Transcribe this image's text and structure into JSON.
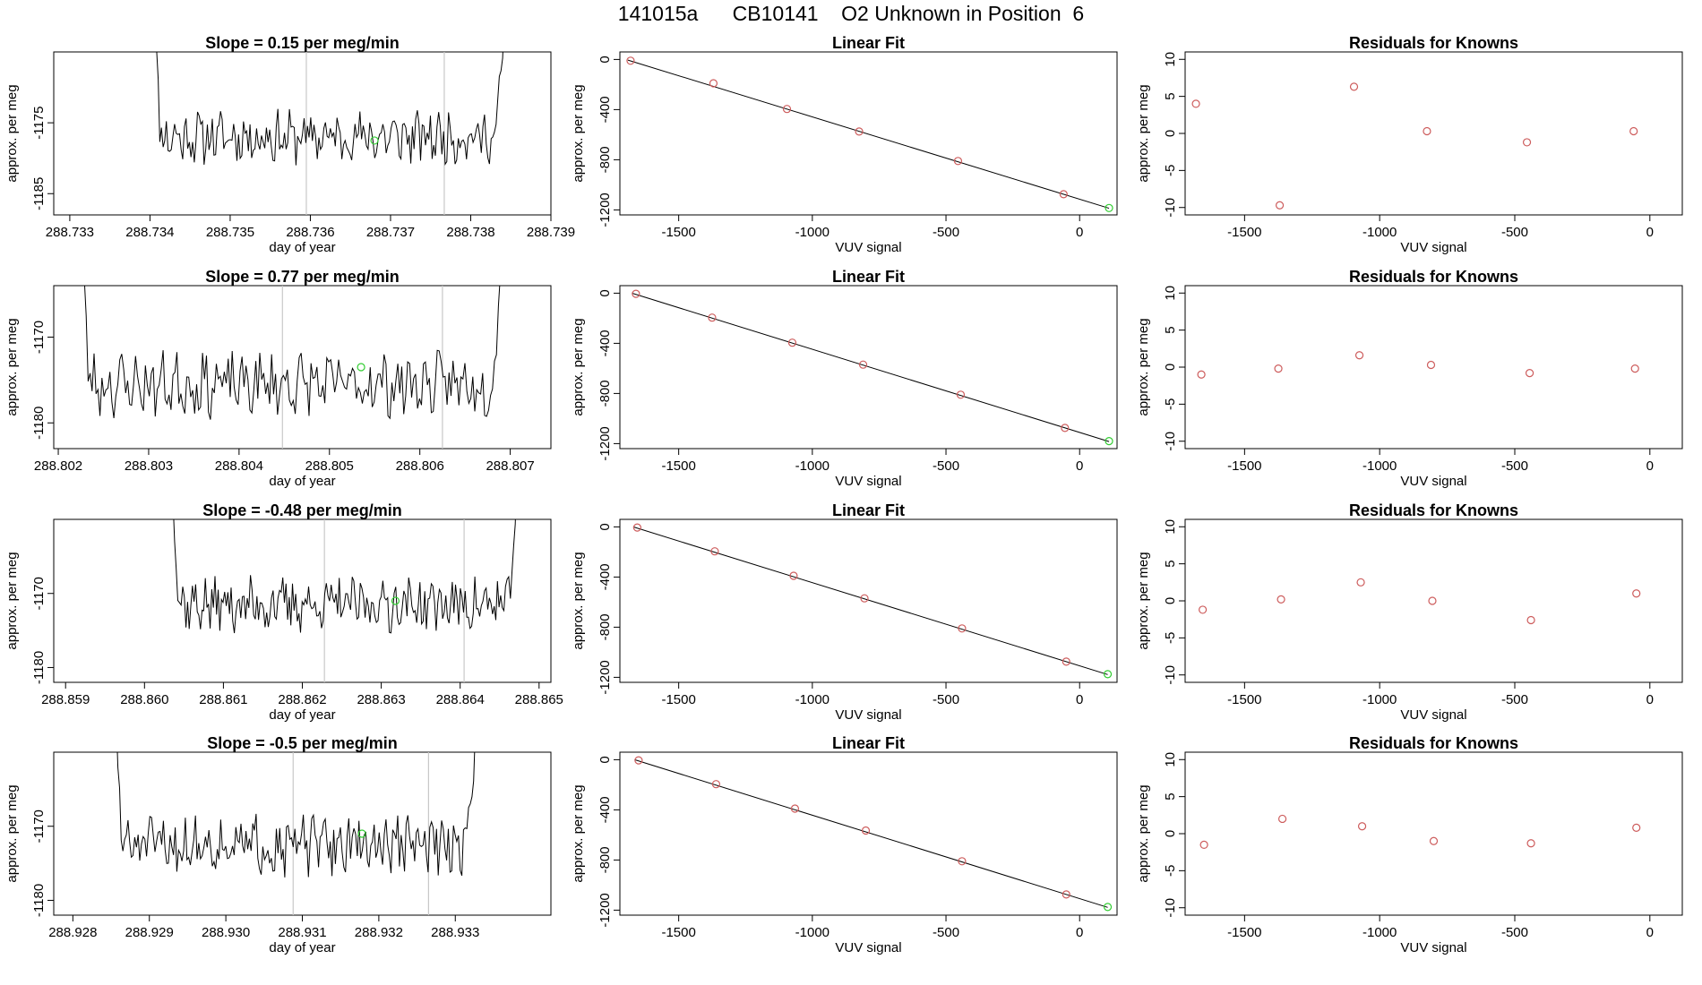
{
  "page_title": "141015a      CB10141    O2 Unknown in Position  6",
  "colors": {
    "trace": "#000000",
    "known_point": "#cd5c5c",
    "unknown_point": "#32cd32",
    "marker_line": "#c8c8c8",
    "axis": "#000000"
  },
  "chart_data": [
    {
      "type": "line",
      "title": "Slope =  0.15  per meg/min",
      "xlabel": "day of year",
      "ylabel": "approx. per meg",
      "xlim": [
        288.7328,
        288.739
      ],
      "ylim": [
        -1188,
        -1165
      ],
      "x_ticks": [
        "288.733",
        "288.734",
        "288.735",
        "288.736",
        "288.737",
        "288.738",
        "288.739"
      ],
      "y_ticks": [
        "-1175",
        "-1185"
      ],
      "trace_start": 288.734,
      "trace_end": 288.7385,
      "base_level": -1177,
      "noise": 3,
      "seed": 11,
      "marker_lines": [
        288.73595,
        288.73767
      ],
      "unknown_point": {
        "x": 288.7368,
        "y": -1177.5
      }
    },
    {
      "type": "scatter",
      "title": "Linear Fit",
      "xlabel": "VUV signal",
      "ylabel": "approx. per meg",
      "xlim": [
        -1720,
        140
      ],
      "ylim": [
        -1240,
        60
      ],
      "x_ticks": [
        "-1500",
        "-1000",
        "-500",
        "0"
      ],
      "y_ticks": [
        "0",
        "-400",
        "-800",
        "-1200"
      ],
      "points": [
        {
          "x": -1680,
          "y": -10
        },
        {
          "x": -1370,
          "y": -190
        },
        {
          "x": -1095,
          "y": -395
        },
        {
          "x": -825,
          "y": -575
        },
        {
          "x": -455,
          "y": -810
        },
        {
          "x": -60,
          "y": -1075
        }
      ],
      "unknown_point": {
        "x": 110,
        "y": -1185
      },
      "fit_line": [
        {
          "x": -1690,
          "y": -5
        },
        {
          "x": 110,
          "y": -1187
        }
      ]
    },
    {
      "type": "scatter",
      "title": "Residuals for Knowns",
      "xlabel": "VUV signal",
      "ylabel": "approx. per meg",
      "xlim": [
        -1720,
        120
      ],
      "ylim": [
        -11,
        11
      ],
      "x_ticks": [
        "-1500",
        "-1000",
        "-500",
        "0"
      ],
      "y_ticks": [
        "10",
        "5",
        "0",
        "-5",
        "-10"
      ],
      "points": [
        {
          "x": -1680,
          "y": 4
        },
        {
          "x": -1370,
          "y": -9.7
        },
        {
          "x": -1095,
          "y": 6.3
        },
        {
          "x": -825,
          "y": 0.3
        },
        {
          "x": -455,
          "y": -1.2
        },
        {
          "x": -60,
          "y": 0.3
        }
      ]
    },
    {
      "type": "line",
      "title": "Slope =  0.77  per meg/min",
      "xlabel": "day of year",
      "ylabel": "approx. per meg",
      "xlim": [
        288.80195,
        288.80745
      ],
      "ylim": [
        -1183,
        -1164
      ],
      "x_ticks": [
        "288.802",
        "288.803",
        "288.804",
        "288.805",
        "288.806",
        "288.807"
      ],
      "y_ticks": [
        "-1170",
        "-1180"
      ],
      "trace_start": 288.8022,
      "trace_end": 288.807,
      "base_level": -1175.5,
      "noise": 3,
      "seed": 23,
      "marker_lines": [
        288.80448,
        288.80625
      ],
      "unknown_point": {
        "x": 288.80535,
        "y": -1173.5
      }
    },
    {
      "type": "scatter",
      "title": "Linear Fit",
      "xlabel": "VUV signal",
      "ylabel": "approx. per meg",
      "xlim": [
        -1720,
        140
      ],
      "ylim": [
        -1240,
        60
      ],
      "x_ticks": [
        "-1500",
        "-1000",
        "-500",
        "0"
      ],
      "y_ticks": [
        "0",
        "-400",
        "-800",
        "-1200"
      ],
      "points": [
        {
          "x": -1660,
          "y": -5
        },
        {
          "x": -1375,
          "y": -195
        },
        {
          "x": -1075,
          "y": -395
        },
        {
          "x": -810,
          "y": -570
        },
        {
          "x": -445,
          "y": -810
        },
        {
          "x": -55,
          "y": -1075
        }
      ],
      "unknown_point": {
        "x": 110,
        "y": -1180
      },
      "fit_line": [
        {
          "x": -1675,
          "y": 0
        },
        {
          "x": 110,
          "y": -1184
        }
      ]
    },
    {
      "type": "scatter",
      "title": "Residuals for Knowns",
      "xlabel": "VUV signal",
      "ylabel": "approx. per meg",
      "xlim": [
        -1720,
        120
      ],
      "ylim": [
        -11,
        11
      ],
      "x_ticks": [
        "-1500",
        "-1000",
        "-500",
        "0"
      ],
      "y_ticks": [
        "10",
        "5",
        "0",
        "-5",
        "-10"
      ],
      "points": [
        {
          "x": -1660,
          "y": -1
        },
        {
          "x": -1375,
          "y": -0.2
        },
        {
          "x": -1075,
          "y": 1.6
        },
        {
          "x": -810,
          "y": 0.3
        },
        {
          "x": -445,
          "y": -0.8
        },
        {
          "x": -55,
          "y": -0.2
        }
      ]
    },
    {
      "type": "line",
      "title": "Slope =  -0.48  per meg/min",
      "xlabel": "day of year",
      "ylabel": "approx. per meg",
      "xlim": [
        288.85885,
        288.86515
      ],
      "ylim": [
        -1182,
        -1160
      ],
      "x_ticks": [
        "288.859",
        "288.860",
        "288.861",
        "288.862",
        "288.863",
        "288.864",
        "288.865"
      ],
      "y_ticks": [
        "-1170",
        "-1180"
      ],
      "trace_start": 288.8603,
      "trace_end": 288.8648,
      "base_level": -1171.5,
      "noise": 3,
      "seed": 37,
      "marker_lines": [
        288.86228,
        288.86405
      ],
      "unknown_point": {
        "x": 288.86318,
        "y": -1171
      }
    },
    {
      "type": "scatter",
      "title": "Linear Fit",
      "xlabel": "VUV signal",
      "ylabel": "approx. per meg",
      "xlim": [
        -1720,
        140
      ],
      "ylim": [
        -1240,
        60
      ],
      "x_ticks": [
        "-1500",
        "-1000",
        "-500",
        "0"
      ],
      "y_ticks": [
        "0",
        "-400",
        "-800",
        "-1200"
      ],
      "points": [
        {
          "x": -1655,
          "y": -5
        },
        {
          "x": -1365,
          "y": -195
        },
        {
          "x": -1070,
          "y": -390
        },
        {
          "x": -805,
          "y": -570
        },
        {
          "x": -440,
          "y": -810
        },
        {
          "x": -50,
          "y": -1075
        }
      ],
      "unknown_point": {
        "x": 105,
        "y": -1175
      },
      "fit_line": [
        {
          "x": -1670,
          "y": 0
        },
        {
          "x": 105,
          "y": -1178
        }
      ]
    },
    {
      "type": "scatter",
      "title": "Residuals for Knowns",
      "xlabel": "VUV signal",
      "ylabel": "approx. per meg",
      "xlim": [
        -1720,
        120
      ],
      "ylim": [
        -11,
        11
      ],
      "x_ticks": [
        "-1500",
        "-1000",
        "-500",
        "0"
      ],
      "y_ticks": [
        "10",
        "5",
        "0",
        "-5",
        "-10"
      ],
      "points": [
        {
          "x": -1655,
          "y": -1.2
        },
        {
          "x": -1365,
          "y": 0.2
        },
        {
          "x": -1070,
          "y": 2.5
        },
        {
          "x": -805,
          "y": 0
        },
        {
          "x": -440,
          "y": -2.6
        },
        {
          "x": -50,
          "y": 1
        }
      ]
    },
    {
      "type": "line",
      "title": "Slope =  -0.5  per meg/min",
      "xlabel": "day of year",
      "ylabel": "approx. per meg",
      "xlim": [
        288.92775,
        288.93425
      ],
      "ylim": [
        -1182,
        -1160
      ],
      "x_ticks": [
        "288.928",
        "288.929",
        "288.930",
        "288.931",
        "288.932",
        "288.933"
      ],
      "y_ticks": [
        "-1170",
        "-1180"
      ],
      "trace_start": 288.9285,
      "trace_end": 288.93335,
      "base_level": -1172.5,
      "noise": 3.2,
      "seed": 51,
      "marker_lines": [
        288.93088,
        288.93265
      ],
      "unknown_point": {
        "x": 288.93178,
        "y": -1171
      }
    },
    {
      "type": "scatter",
      "title": "Linear Fit",
      "xlabel": "VUV signal",
      "ylabel": "approx. per meg",
      "xlim": [
        -1720,
        140
      ],
      "ylim": [
        -1240,
        60
      ],
      "x_ticks": [
        "-1500",
        "-1000",
        "-500",
        "0"
      ],
      "y_ticks": [
        "0",
        "-400",
        "-800",
        "-1200"
      ],
      "points": [
        {
          "x": -1650,
          "y": -5
        },
        {
          "x": -1360,
          "y": -195
        },
        {
          "x": -1065,
          "y": -390
        },
        {
          "x": -800,
          "y": -565
        },
        {
          "x": -440,
          "y": -810
        },
        {
          "x": -50,
          "y": -1075
        }
      ],
      "unknown_point": {
        "x": 105,
        "y": -1175
      },
      "fit_line": [
        {
          "x": -1665,
          "y": 0
        },
        {
          "x": 105,
          "y": -1178
        }
      ]
    },
    {
      "type": "scatter",
      "title": "Residuals for Knowns",
      "xlabel": "VUV signal",
      "ylabel": "approx. per meg",
      "xlim": [
        -1720,
        120
      ],
      "ylim": [
        -11,
        11
      ],
      "x_ticks": [
        "-1500",
        "-1000",
        "-500",
        "0"
      ],
      "y_ticks": [
        "10",
        "5",
        "0",
        "-5",
        "-10"
      ],
      "points": [
        {
          "x": -1650,
          "y": -1.5
        },
        {
          "x": -1360,
          "y": 2
        },
        {
          "x": -1065,
          "y": 1
        },
        {
          "x": -800,
          "y": -1
        },
        {
          "x": -440,
          "y": -1.3
        },
        {
          "x": -50,
          "y": 0.8
        }
      ]
    }
  ]
}
